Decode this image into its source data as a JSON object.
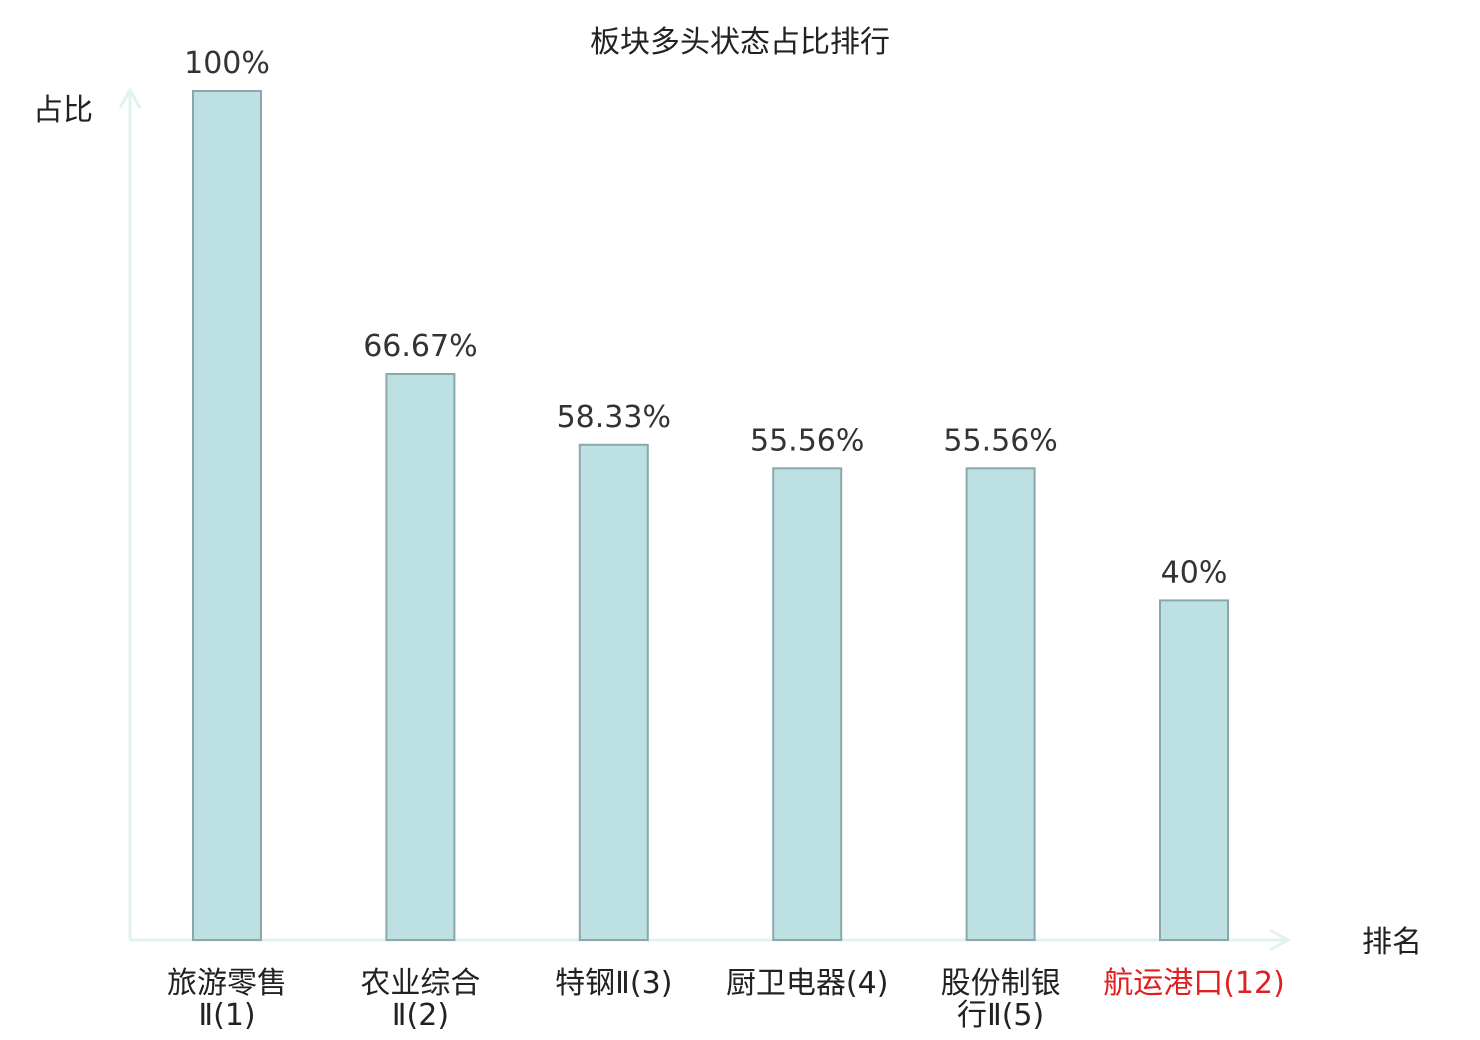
{
  "chart_data": {
    "type": "bar",
    "title": "板块多头状态占比排行",
    "ylabel": "占比",
    "xlabel": "排名",
    "ylim": [
      0,
      100
    ],
    "grid": false,
    "legend": "none",
    "colors": {
      "bar_fill": "#bde0e3",
      "bar_stroke": "#8aa8ab",
      "axis": "#e0f3f0",
      "highlight_text": "#e02020"
    },
    "categories": [
      {
        "lines": [
          "旅游零售",
          "Ⅱ(1)"
        ],
        "highlight": false
      },
      {
        "lines": [
          "农业综合",
          "Ⅱ(2)"
        ],
        "highlight": false
      },
      {
        "lines": [
          "特钢Ⅱ(3)"
        ],
        "highlight": false
      },
      {
        "lines": [
          "厨卫电器(4)"
        ],
        "highlight": false
      },
      {
        "lines": [
          "股份制银",
          "行Ⅱ(5)"
        ],
        "highlight": false
      },
      {
        "lines": [
          "航运港口(12)"
        ],
        "highlight": true
      }
    ],
    "values": [
      100,
      66.67,
      58.33,
      55.56,
      55.56,
      40
    ],
    "value_labels": [
      "100%",
      "66.67%",
      "58.33%",
      "55.56%",
      "55.56%",
      "40%"
    ]
  }
}
